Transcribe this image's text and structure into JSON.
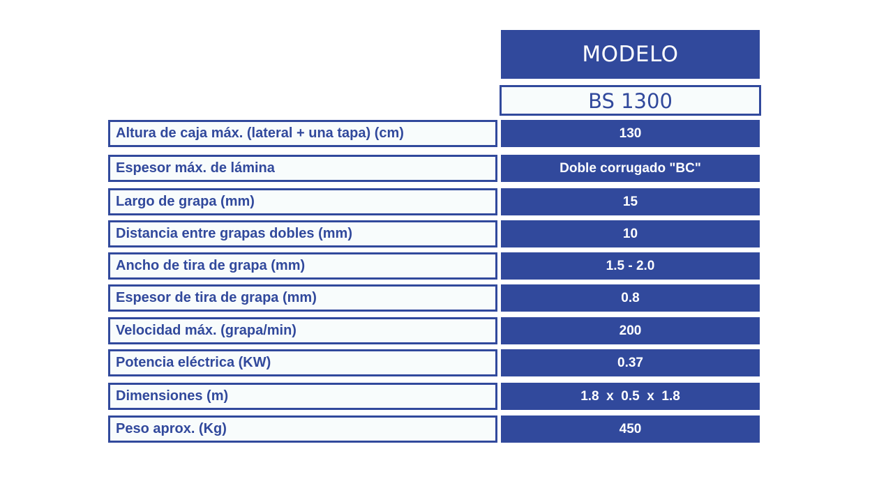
{
  "header": {
    "title": "MODELO",
    "model": "BS 1300"
  },
  "colors": {
    "accent": "#31499c",
    "label_bg": "#f8fcfc"
  },
  "specs": [
    {
      "label": "Altura de caja máx. (lateral + una tapa) (cm)",
      "value": "130"
    },
    {
      "label": "Espesor máx. de lámina",
      "value": "Doble corrugado \"BC\""
    },
    {
      "label": "Largo de grapa (mm)",
      "value": "15"
    },
    {
      "label": "Distancia entre grapas dobles (mm)",
      "value": "10"
    },
    {
      "label": "Ancho de tira de grapa (mm)",
      "value": "1.5 - 2.0"
    },
    {
      "label": "Espesor de tira de grapa (mm)",
      "value": "0.8"
    },
    {
      "label": "Velocidad máx. (grapa/min)",
      "value": "200"
    },
    {
      "label": "Potencia eléctrica (KW)",
      "value": "0.37"
    },
    {
      "label": "Dimensiones (m)",
      "value": "1.8  x  0.5  x  1.8"
    },
    {
      "label": "Peso aprox. (Kg)",
      "value": "450"
    }
  ]
}
